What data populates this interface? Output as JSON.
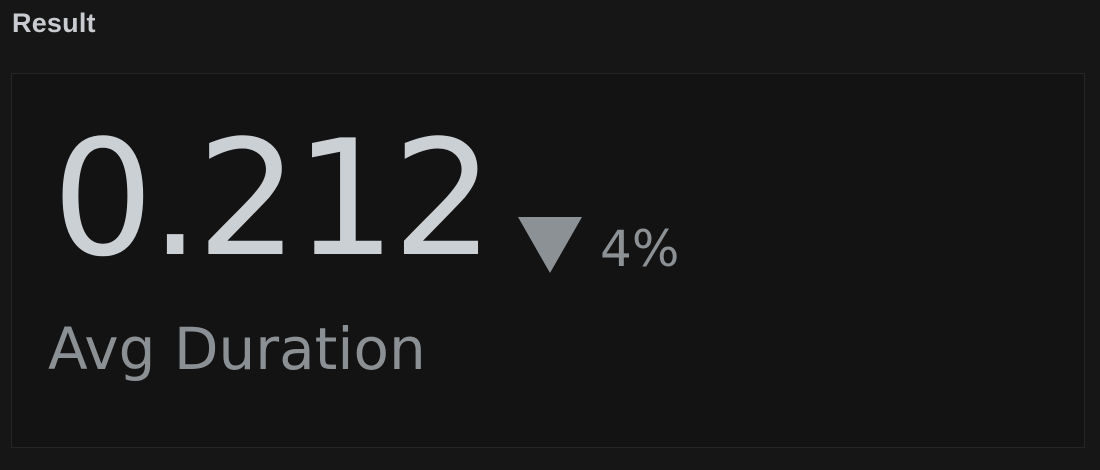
{
  "section": {
    "title": "Result"
  },
  "metric": {
    "value": "0.212",
    "change": {
      "direction": "down",
      "icon": "triangle-down-icon",
      "percent": "4%"
    },
    "label": "Avg Duration"
  },
  "colors": {
    "background": "#161616",
    "card": "#131313",
    "value_text": "#cbd0d4",
    "muted_text": "#8b9095"
  }
}
